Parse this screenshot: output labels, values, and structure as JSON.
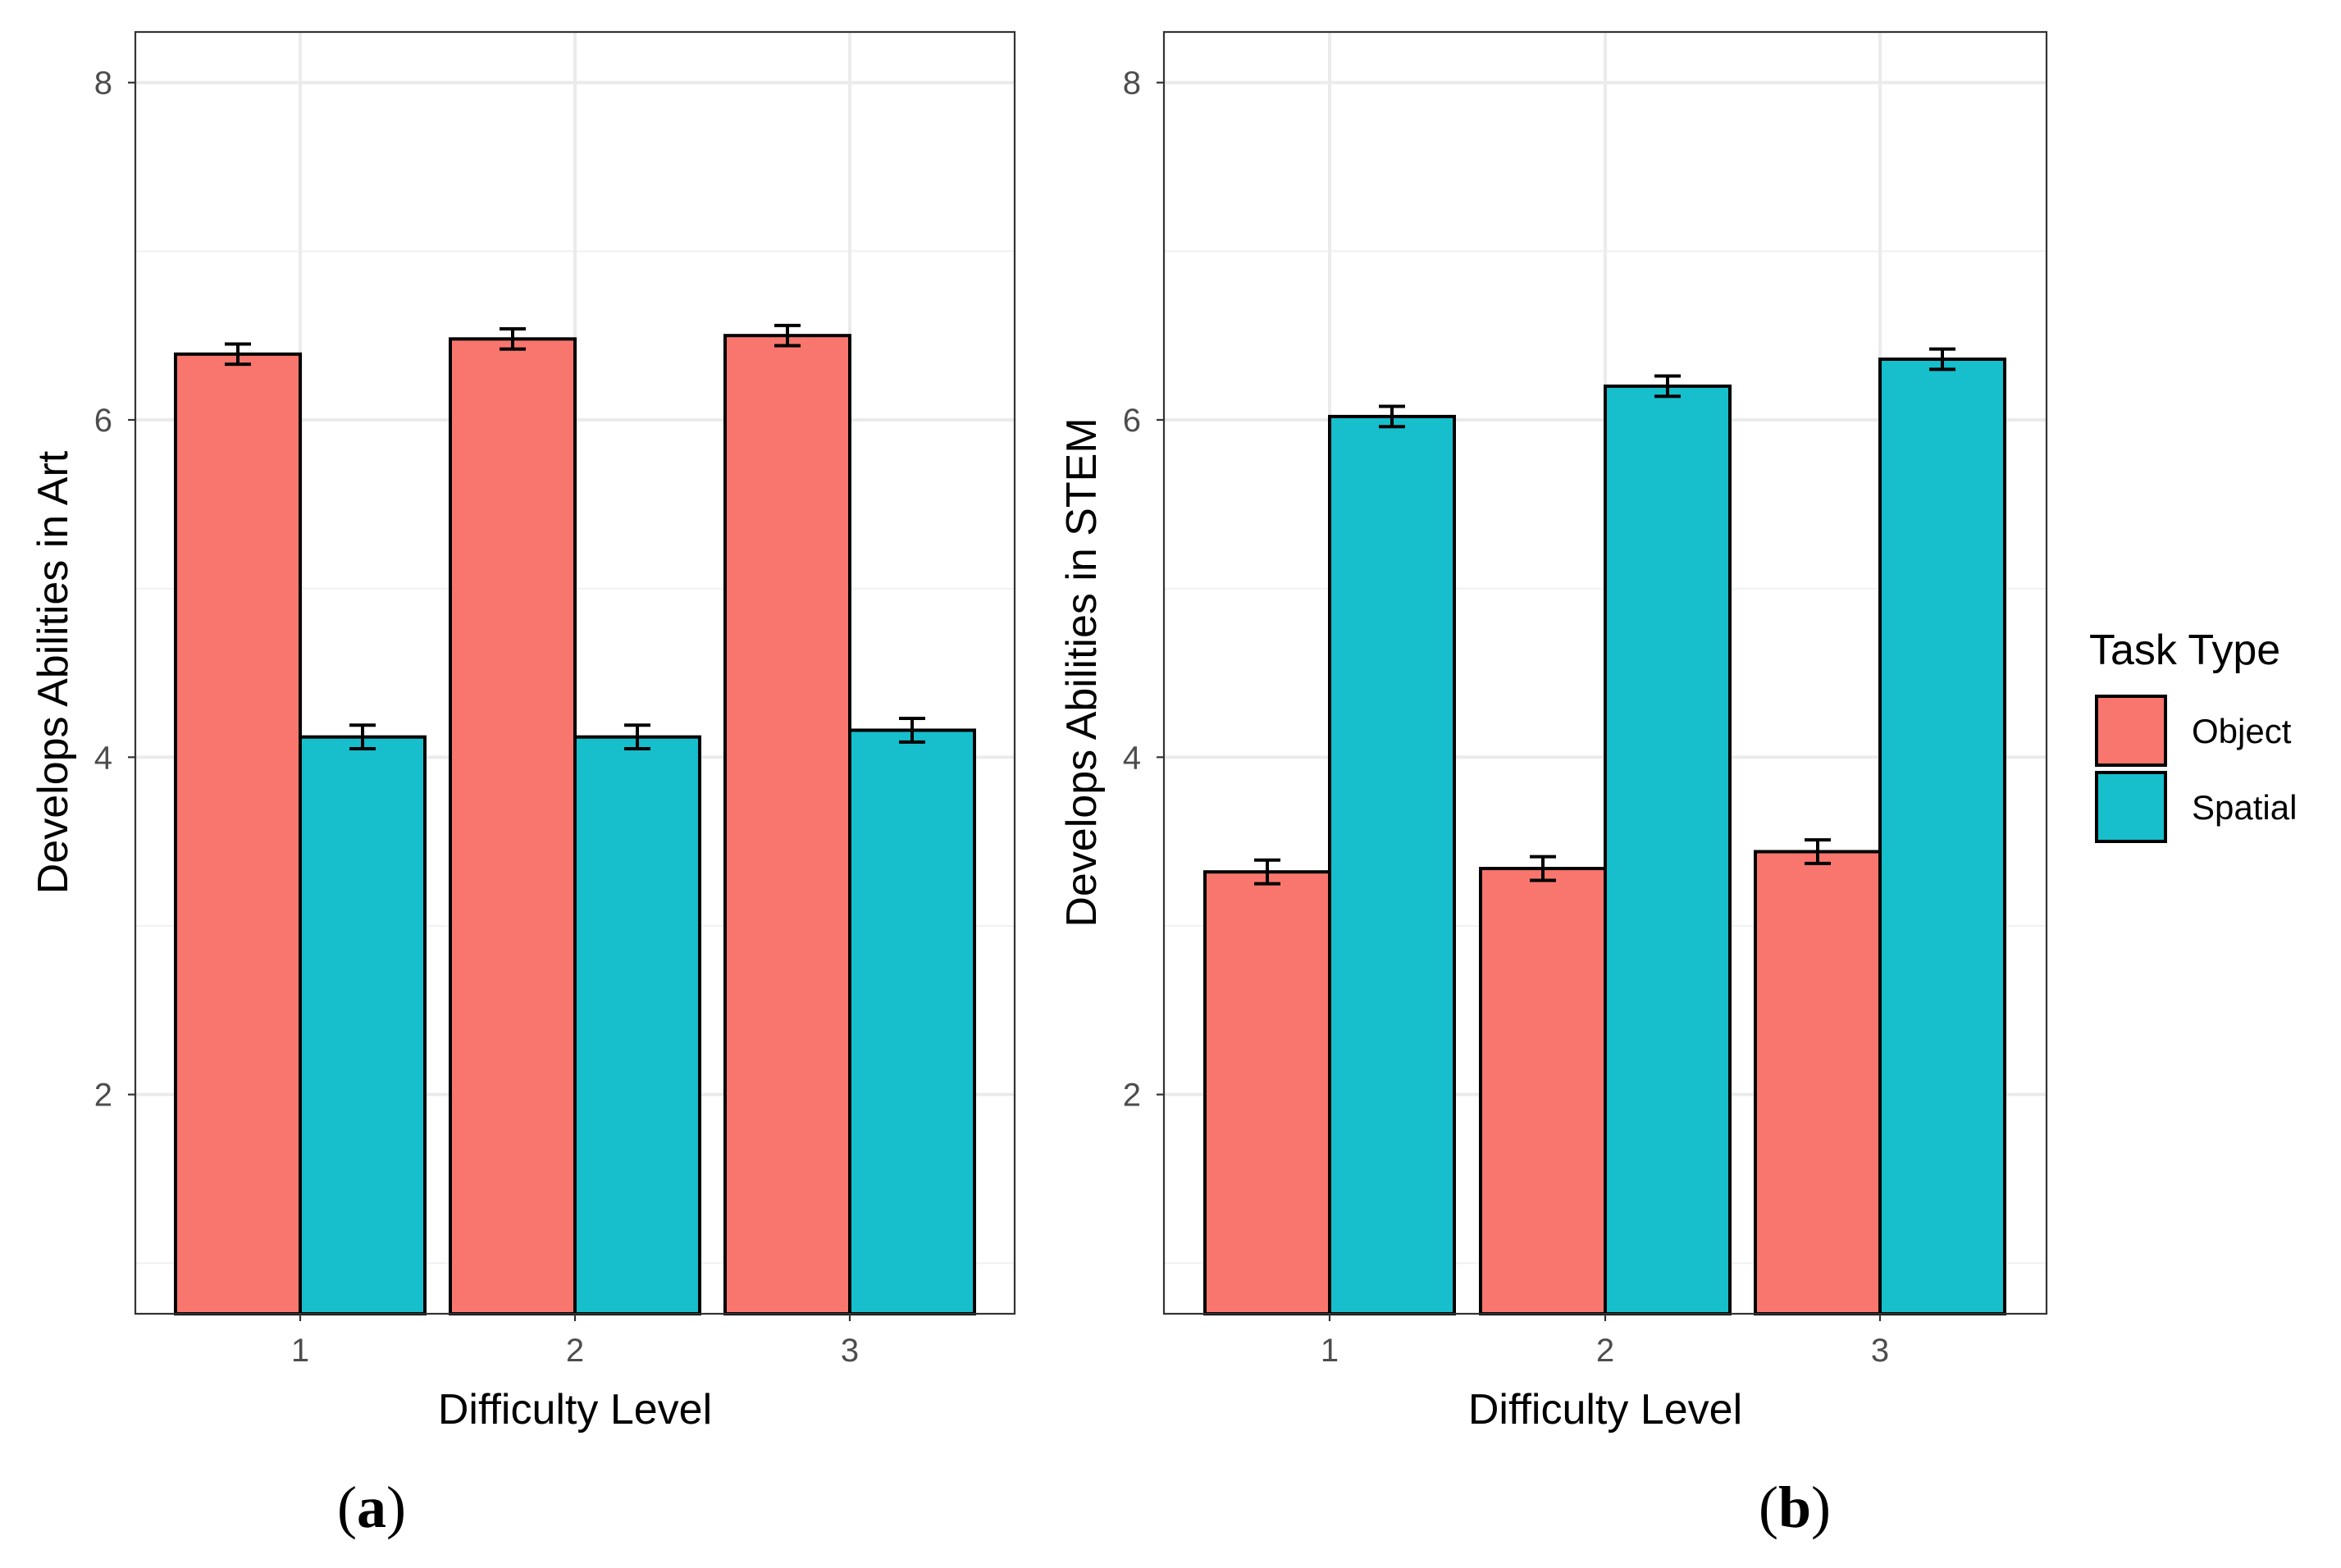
{
  "chart_data": [
    {
      "type": "bar",
      "panel_label": "a",
      "title": "",
      "xlabel": "Difficulty Level",
      "ylabel": "Develops Abilities in Art",
      "categories": [
        "1",
        "2",
        "3"
      ],
      "ylim": [
        0.7,
        8.3
      ],
      "yticks": [
        "2",
        "4",
        "6",
        "8"
      ],
      "grid": true,
      "series": [
        {
          "name": "Object",
          "color": "#f8766d",
          "values": [
            6.39,
            6.48,
            6.5
          ],
          "errors": [
            0.06,
            0.06,
            0.06
          ]
        },
        {
          "name": "Spatial",
          "color": "#17becc",
          "values": [
            4.12,
            4.12,
            4.16
          ],
          "errors": [
            0.07,
            0.07,
            0.07
          ]
        }
      ]
    },
    {
      "type": "bar",
      "panel_label": "b",
      "title": "",
      "xlabel": "Difficulty Level",
      "ylabel": "Develops Abilities in STEM",
      "categories": [
        "1",
        "2",
        "3"
      ],
      "ylim": [
        0.7,
        8.3
      ],
      "yticks": [
        "2",
        "4",
        "6",
        "8"
      ],
      "grid": true,
      "series": [
        {
          "name": "Object",
          "color": "#f8766d",
          "values": [
            3.32,
            3.34,
            3.44
          ],
          "errors": [
            0.07,
            0.07,
            0.07
          ]
        },
        {
          "name": "Spatial",
          "color": "#17becc",
          "values": [
            6.02,
            6.2,
            6.36
          ],
          "errors": [
            0.06,
            0.06,
            0.06
          ]
        }
      ]
    }
  ],
  "legend": {
    "title": "Task Type",
    "position": "right",
    "items": [
      {
        "label": "Object",
        "color": "#f8766d"
      },
      {
        "label": "Spatial",
        "color": "#17becc"
      }
    ]
  }
}
